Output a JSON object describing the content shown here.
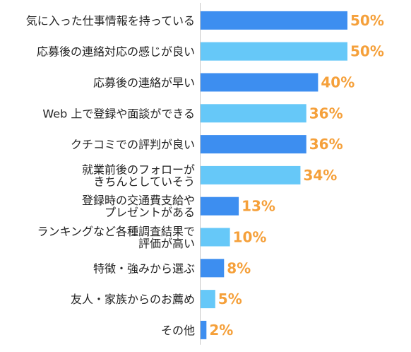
{
  "chart_data": {
    "type": "bar",
    "orientation": "horizontal",
    "title": "",
    "xlabel": "",
    "ylabel": "",
    "xlim": [
      0,
      50
    ],
    "grid": false,
    "legend": "none",
    "unit": "%",
    "categories": [
      [
        "気に入った仕事情報を持っている"
      ],
      [
        "応募後の連絡対応の感じが良い"
      ],
      [
        "応募後の連絡が早い"
      ],
      [
        "Web 上で登録や面談ができる"
      ],
      [
        "クチコミでの評判が良い"
      ],
      [
        "就業前後のフォローが",
        "きちんとしていそう"
      ],
      [
        "登録時の交通費支給や",
        "プレゼントがある"
      ],
      [
        "ランキングなど各種調査結果で",
        "評価が高い"
      ],
      [
        "特徴・強みから選ぶ"
      ],
      [
        "友人・家族からのお薦め"
      ],
      [
        "その他"
      ]
    ],
    "values": [
      50,
      50,
      40,
      36,
      36,
      34,
      13,
      10,
      8,
      5,
      2
    ],
    "value_labels": [
      "50%",
      "50%",
      "40%",
      "36%",
      "36%",
      "34%",
      "13%",
      "10%",
      "8%",
      "5%",
      "2%"
    ]
  },
  "colors": {
    "bar_dark": "#3d8ef0",
    "bar_light": "#66c8f8",
    "value_label": "#f5a03a",
    "axis": "#c8c8c8",
    "text": "#222222"
  }
}
